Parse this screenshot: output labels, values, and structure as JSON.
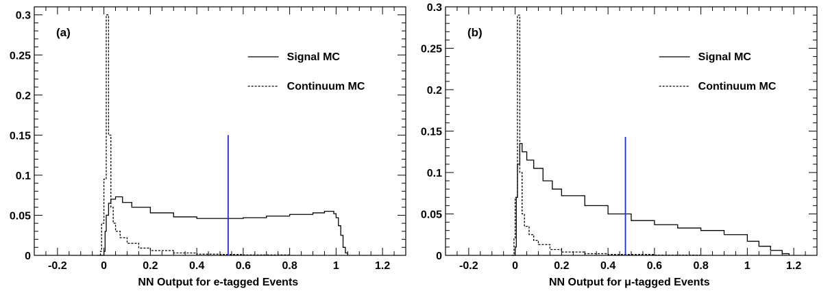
{
  "chart_data": [
    {
      "type": "line",
      "panel_label": "(a)",
      "xlabel": "NN Output for e-tagged Events",
      "ylabel": "",
      "xlim": [
        -0.3,
        1.3
      ],
      "ylim": [
        0,
        0.31
      ],
      "x_ticks": [
        "-0.2",
        "0",
        "0.2",
        "0.4",
        "0.6",
        "0.8",
        "1",
        "1.2"
      ],
      "y_ticks": [
        "0",
        "0.05",
        "0.1",
        "0.15",
        "0.2",
        "0.25",
        "0.3"
      ],
      "legend_position": "top-right",
      "cut_line": {
        "x": 0.535,
        "y_top": 0.15,
        "color": "#1f2bd6"
      },
      "series": [
        {
          "name": "Signal MC",
          "style": "solid",
          "points": [
            [
              -0.02,
              0
            ],
            [
              0,
              0.005
            ],
            [
              0.005,
              0.03
            ],
            [
              0.01,
              0.05
            ],
            [
              0.02,
              0.065
            ],
            [
              0.03,
              0.07
            ],
            [
              0.05,
              0.073
            ],
            [
              0.08,
              0.066
            ],
            [
              0.12,
              0.06
            ],
            [
              0.2,
              0.053
            ],
            [
              0.3,
              0.048
            ],
            [
              0.4,
              0.046
            ],
            [
              0.5,
              0.046
            ],
            [
              0.6,
              0.047
            ],
            [
              0.7,
              0.049
            ],
            [
              0.8,
              0.051
            ],
            [
              0.9,
              0.053
            ],
            [
              0.95,
              0.055
            ],
            [
              0.99,
              0.052
            ],
            [
              1.0,
              0.047
            ],
            [
              1.01,
              0.037
            ],
            [
              1.02,
              0.025
            ],
            [
              1.03,
              0.01
            ],
            [
              1.04,
              0.003
            ],
            [
              1.05,
              0
            ]
          ]
        },
        {
          "name": "Continuum MC",
          "style": "dashed",
          "points": [
            [
              -0.03,
              0
            ],
            [
              -0.015,
              0.005
            ],
            [
              -0.01,
              0.04
            ],
            [
              0,
              0.095
            ],
            [
              0.01,
              0.3
            ],
            [
              0.02,
              0.15
            ],
            [
              0.03,
              0.06
            ],
            [
              0.04,
              0.04
            ],
            [
              0.05,
              0.03
            ],
            [
              0.07,
              0.022
            ],
            [
              0.1,
              0.015
            ],
            [
              0.15,
              0.009
            ],
            [
              0.2,
              0.006
            ],
            [
              0.3,
              0.003
            ],
            [
              0.4,
              0.0015
            ],
            [
              0.5,
              0.001
            ],
            [
              0.6,
              0.0005
            ],
            [
              0.8,
              0
            ]
          ]
        }
      ]
    },
    {
      "type": "line",
      "panel_label": "(b)",
      "xlabel": "NN Output for μ-tagged Events",
      "ylabel": "",
      "xlim": [
        -0.3,
        1.3
      ],
      "ylim": [
        0,
        0.3
      ],
      "x_ticks": [
        "-0.2",
        "0",
        "0.2",
        "0.4",
        "0.6",
        "0.8",
        "1",
        "1.2"
      ],
      "y_ticks": [
        "0",
        "0.05",
        "0.1",
        "0.15",
        "0.2",
        "0.25",
        "0.3"
      ],
      "legend_position": "top-right",
      "cut_line": {
        "x": 0.475,
        "y_top": 0.143,
        "color": "#1f2bd6"
      },
      "series": [
        {
          "name": "Signal MC",
          "style": "solid",
          "points": [
            [
              -0.01,
              0
            ],
            [
              0,
              0.01
            ],
            [
              0.005,
              0.07
            ],
            [
              0.01,
              0.11
            ],
            [
              0.02,
              0.135
            ],
            [
              0.03,
              0.125
            ],
            [
              0.05,
              0.115
            ],
            [
              0.08,
              0.105
            ],
            [
              0.12,
              0.09
            ],
            [
              0.16,
              0.08
            ],
            [
              0.2,
              0.072
            ],
            [
              0.3,
              0.06
            ],
            [
              0.4,
              0.05
            ],
            [
              0.5,
              0.042
            ],
            [
              0.6,
              0.037
            ],
            [
              0.7,
              0.033
            ],
            [
              0.8,
              0.03
            ],
            [
              0.9,
              0.025
            ],
            [
              1.0,
              0.017
            ],
            [
              1.05,
              0.011
            ],
            [
              1.1,
              0.006
            ],
            [
              1.15,
              0.002
            ],
            [
              1.18,
              0
            ]
          ]
        },
        {
          "name": "Continuum MC",
          "style": "dashed",
          "points": [
            [
              -0.015,
              0
            ],
            [
              -0.005,
              0.02
            ],
            [
              0,
              0.07
            ],
            [
              0.01,
              0.29
            ],
            [
              0.02,
              0.1
            ],
            [
              0.03,
              0.05
            ],
            [
              0.04,
              0.035
            ],
            [
              0.06,
              0.025
            ],
            [
              0.08,
              0.018
            ],
            [
              0.1,
              0.013
            ],
            [
              0.15,
              0.007
            ],
            [
              0.2,
              0.004
            ],
            [
              0.3,
              0.002
            ],
            [
              0.4,
              0.001
            ],
            [
              0.6,
              0.0003
            ],
            [
              0.8,
              0
            ]
          ]
        }
      ]
    }
  ]
}
